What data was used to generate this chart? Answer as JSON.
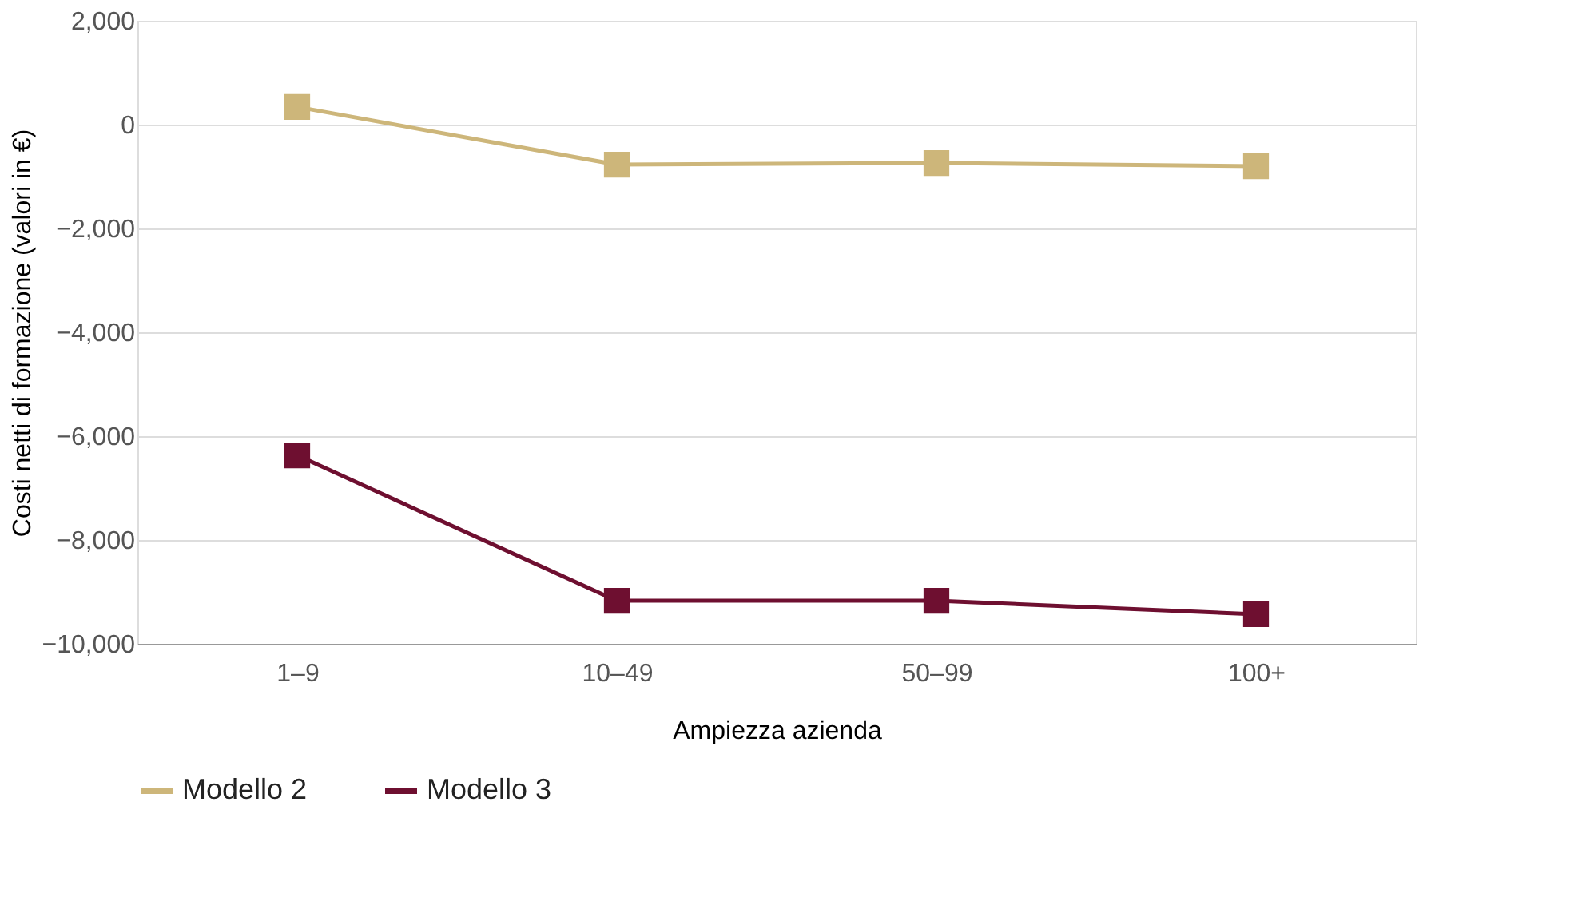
{
  "chart_data": {
    "type": "line",
    "xlabel": "Ampiezza azienda",
    "ylabel": "Costi netti di formazione (valori in €)",
    "categories": [
      "1–9",
      "10–49",
      "50–99",
      "100+"
    ],
    "series": [
      {
        "name": "Modello 2",
        "color": "#cdb67a",
        "values": [
          340,
          -770,
          -740,
          -800
        ]
      },
      {
        "name": "Modello 3",
        "color": "#6e0f30",
        "values": [
          -6370,
          -9170,
          -9170,
          -9430
        ]
      }
    ],
    "ylim": [
      -10000,
      2000
    ],
    "yticks": [
      {
        "value": -10000,
        "label": "−10,000"
      },
      {
        "value": -8000,
        "label": "−8,000"
      },
      {
        "value": -6000,
        "label": "−6,000"
      },
      {
        "value": -4000,
        "label": "−4,000"
      },
      {
        "value": -2000,
        "label": "−2,000"
      },
      0,
      {
        "value": 2000,
        "label": "2,000"
      }
    ],
    "grid": "y",
    "legend": "bottom left",
    "marker": "square",
    "line_style": "solid"
  }
}
